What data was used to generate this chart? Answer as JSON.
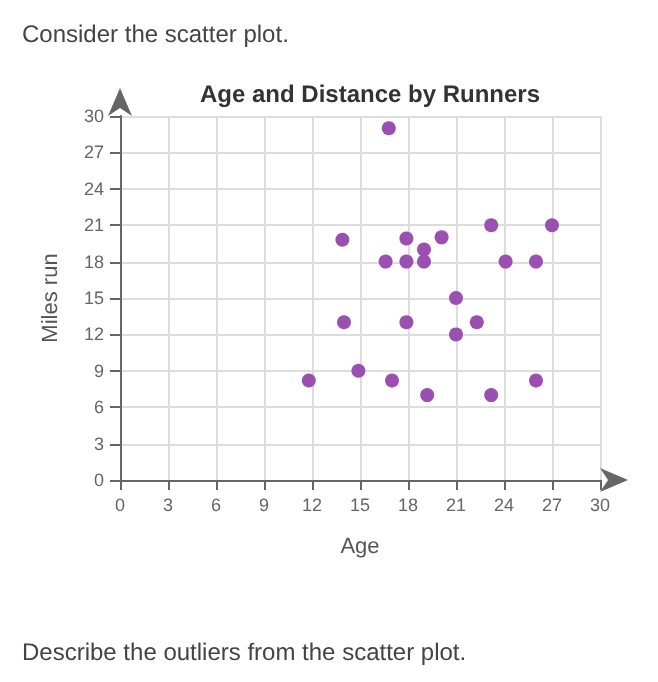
{
  "chart_data": {
    "type": "scatter",
    "title": "Age and Distance by Runners",
    "xlabel": "Age",
    "ylabel": "Miles run",
    "annotations": [
      "Consider the scatter plot.",
      "Describe the outliers from the scatter plot."
    ],
    "x": [
      16.8,
      13.9,
      16.6,
      17.9,
      17.9,
      19,
      19,
      20.1,
      23.2,
      27,
      24.1,
      26,
      21,
      14,
      17.9,
      22.3,
      21,
      14.9,
      11.8,
      17,
      19.2,
      23.2,
      26
    ],
    "values": [
      29,
      19.8,
      18,
      19.9,
      18,
      19,
      18,
      20,
      21,
      21,
      18,
      18,
      15,
      13,
      13,
      13,
      12,
      9,
      8.2,
      8.2,
      7,
      7,
      8.2
    ],
    "color": "#9b4fb0",
    "marker": "circle",
    "grid": true,
    "xlim": [
      0,
      30
    ],
    "xticks": [
      0,
      3,
      6,
      9,
      12,
      15,
      18,
      21,
      24,
      27,
      30
    ],
    "ylim": [
      0,
      30
    ],
    "yticks": [
      0,
      3,
      6,
      9,
      12,
      15,
      18,
      21,
      24,
      27,
      30
    ]
  }
}
